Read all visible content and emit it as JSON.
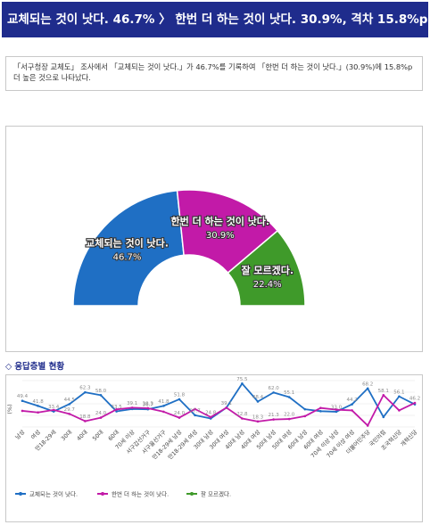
{
  "header": {
    "title": "교체되는 것이 낫다. 46.7% 〉 한번 더 하는 것이 낫다. 30.9%, 격차 15.8%p"
  },
  "summary": {
    "text": "「서구청장 교체도」 조사에서 「교체되는 것이 낫다.」가 46.7%를 기록하여 「한번 더 하는 것이 낫다.」(30.9%)에 15.8%p 더 높은 것으로 나타났다."
  },
  "section": {
    "title": "응답층별 현황"
  },
  "colors": {
    "replace": "#1f6fc4",
    "again": "#c21aa8",
    "unsure": "#3f9a2a",
    "header_bg": "#1f2c8c"
  },
  "chart_data": [
    {
      "type": "pie",
      "variant": "half-donut",
      "slices": [
        {
          "label": "교체되는 것이 낫다.",
          "value": 46.7,
          "display": "46.7%",
          "color": "#1f6fc4"
        },
        {
          "label": "한번 더 하는 것이 낫다.",
          "value": 30.9,
          "display": "30.9%",
          "color": "#c21aa8"
        },
        {
          "label": "잘 모르겠다.",
          "value": 22.4,
          "display": "22.4%",
          "color": "#3f9a2a"
        }
      ]
    },
    {
      "type": "line",
      "ylabel": "(%)",
      "legend_position": "bottom-left",
      "categories": [
        "남성",
        "여성",
        "만18-29세",
        "30대",
        "40대",
        "50대",
        "60대",
        "70세 이상",
        "서구갑선거구",
        "서구을선거구",
        "만18-29세 남성",
        "만18-29세 여성",
        "30대 남성",
        "30대 여성",
        "40대 남성",
        "40대 여성",
        "50대 남성",
        "50대 여성",
        "60대 남성",
        "60대 여성",
        "70세 이상 남성",
        "70세 이상 여성",
        "더불어민주당",
        "국민의힘",
        "조국혁신당",
        "개혁신당"
      ],
      "series": [
        {
          "name": "교체되는 것이 낫다.",
          "color": "#1f6fc4",
          "values": [
            49.4,
            41.8,
            33.4,
            44.5,
            62.3,
            58.0,
            33.5,
            37.1,
            36.7,
            41.8,
            51.8,
            27.7,
            22.8,
            39.1,
            75.5,
            48.4,
            62.0,
            55.1,
            36.7,
            33.8,
            33.0,
            44.2,
            68.2,
            25.0,
            56.1,
            44.1
          ]
        },
        {
          "name": "한번 더 하는 것이 낫다.",
          "color": "#c21aa8",
          "values": [
            34.3,
            31.9,
            35.7,
            29.7,
            18.8,
            24.0,
            36.5,
            39.1,
            38.3,
            33.0,
            24.0,
            37.1,
            24.8,
            39.1,
            22.8,
            18.3,
            21.3,
            22.0,
            26.3,
            38.7,
            36.1,
            35.0,
            12.1,
            58.1,
            35.0,
            46.2
          ]
        }
      ],
      "data_labels": [
        {
          "series": 0,
          "index": 0,
          "text": "49.4"
        },
        {
          "series": 0,
          "index": 1,
          "text": "41.8"
        },
        {
          "series": 0,
          "index": 2,
          "text": "33.4"
        },
        {
          "series": 0,
          "index": 3,
          "text": "44.5"
        },
        {
          "series": 0,
          "index": 4,
          "text": "62.3"
        },
        {
          "series": 0,
          "index": 5,
          "text": "58.0"
        },
        {
          "series": 0,
          "index": 6,
          "text": "33.5"
        },
        {
          "series": 0,
          "index": 8,
          "text": "36.7"
        },
        {
          "series": 0,
          "index": 9,
          "text": "41.8"
        },
        {
          "series": 0,
          "index": 10,
          "text": "51.8"
        },
        {
          "series": 0,
          "index": 11,
          "text": "27.7"
        },
        {
          "series": 0,
          "index": 13,
          "text": "39.1"
        },
        {
          "series": 0,
          "index": 14,
          "text": "75.5"
        },
        {
          "series": 0,
          "index": 15,
          "text": "48.4"
        },
        {
          "series": 0,
          "index": 16,
          "text": "62.0"
        },
        {
          "series": 0,
          "index": 17,
          "text": "55.1"
        },
        {
          "series": 0,
          "index": 20,
          "text": "33.0"
        },
        {
          "series": 0,
          "index": 21,
          "text": "44.2"
        },
        {
          "series": 0,
          "index": 22,
          "text": "68.2"
        },
        {
          "series": 0,
          "index": 24,
          "text": "56.1"
        },
        {
          "series": 1,
          "index": 3,
          "text": "29.7"
        },
        {
          "series": 1,
          "index": 4,
          "text": "18.8"
        },
        {
          "series": 1,
          "index": 5,
          "text": "24.0"
        },
        {
          "series": 1,
          "index": 7,
          "text": "39.1"
        },
        {
          "series": 1,
          "index": 8,
          "text": "38.3"
        },
        {
          "series": 1,
          "index": 10,
          "text": "24.0"
        },
        {
          "series": 1,
          "index": 12,
          "text": "24.8"
        },
        {
          "series": 1,
          "index": 14,
          "text": "22.8"
        },
        {
          "series": 1,
          "index": 15,
          "text": "18.3"
        },
        {
          "series": 1,
          "index": 16,
          "text": "21.3"
        },
        {
          "series": 1,
          "index": 17,
          "text": "22.0"
        },
        {
          "series": 1,
          "index": 23,
          "text": "58.1"
        },
        {
          "series": 1,
          "index": 25,
          "text": "46.2"
        }
      ],
      "legend": [
        {
          "label": "교체되는 것이 낫다.",
          "color": "#1f6fc4"
        },
        {
          "label": "한번 더 하는 것이 낫다.",
          "color": "#c21aa8"
        },
        {
          "label": "잘 모르겠다.",
          "color": "#3f9a2a"
        }
      ]
    }
  ]
}
